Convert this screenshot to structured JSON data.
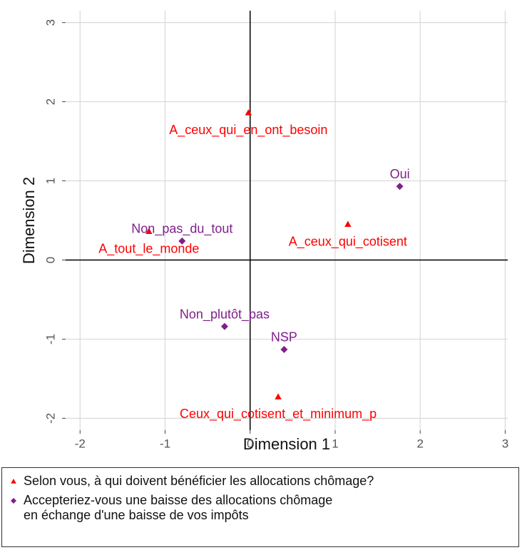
{
  "chart_data": {
    "type": "scatter",
    "xlabel": "Dimension 1",
    "ylabel": "Dimension 2",
    "xlim": [
      -2.17,
      3.03
    ],
    "ylim": [
      -2.15,
      3.15
    ],
    "xticks": [
      -2,
      -1,
      0,
      1,
      2,
      3
    ],
    "yticks": [
      -2,
      -1,
      0,
      1,
      2,
      3
    ],
    "grid": true,
    "legend": "bottom",
    "series": [
      {
        "name": "Selon vous, à qui doivent bénéficier les allocations chômage?",
        "color": "#ff0000",
        "marker": "triangle",
        "labels": [
          "A_ceux_qui_en_ont_besoin",
          "A_ceux_qui_cotisent",
          "A_tout_le_monde",
          "Ceux_qui_cotisent_et_minimum_p"
        ],
        "x": [
          -0.02,
          1.15,
          -1.19,
          0.33
        ],
        "values": [
          1.86,
          0.45,
          0.36,
          -1.73
        ]
      },
      {
        "name": "Accepteriez-vous une baisse des allocations chômage\nen échange d'une baisse de vos impôts",
        "color": "#7f1f8a",
        "marker": "diamond",
        "labels": [
          "Oui",
          "Non_pas_du_tout",
          "Non_plutôt_pas",
          "NSP"
        ],
        "x": [
          1.76,
          -0.8,
          -0.3,
          0.4
        ],
        "values": [
          0.93,
          0.24,
          -0.84,
          -1.13
        ]
      }
    ]
  }
}
